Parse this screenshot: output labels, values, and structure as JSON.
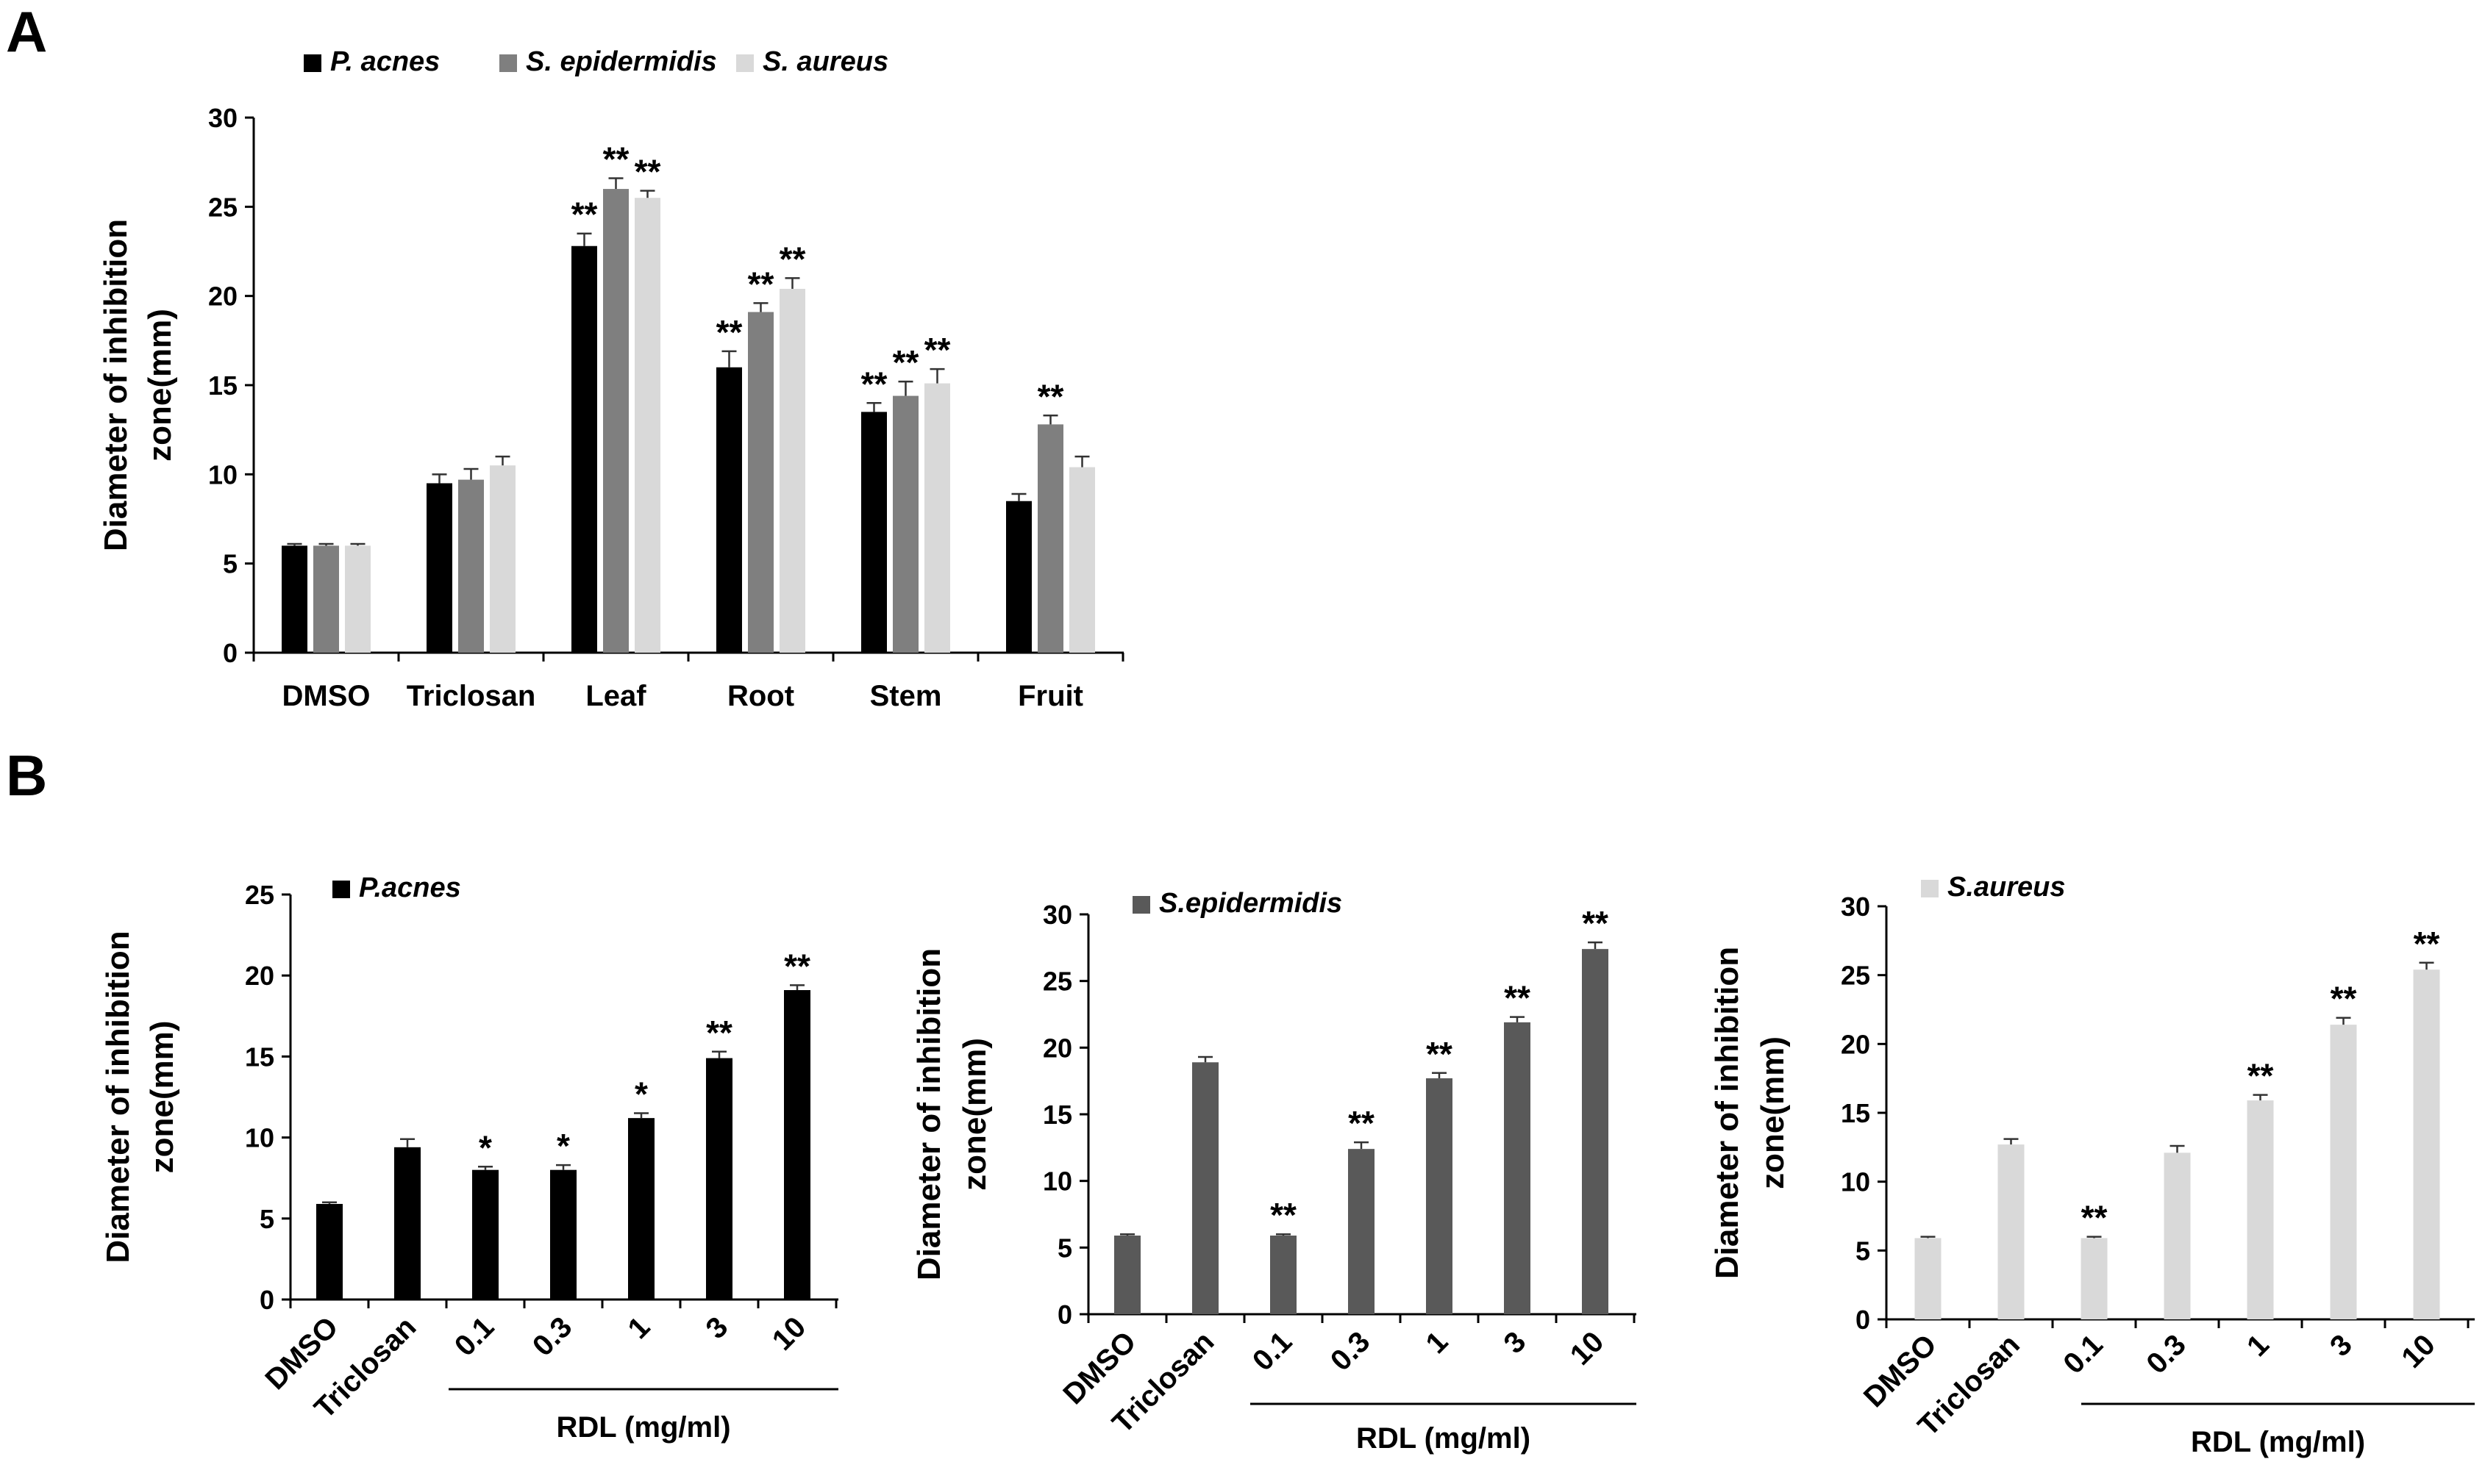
{
  "panels": {
    "a_label": "A",
    "b_label": "B"
  },
  "colors": {
    "p_acnes": "#000000",
    "s_epidermidis": "#7f7f7f",
    "s_aureus": "#d9d9d9",
    "b_s_epidermidis": "#595959"
  },
  "chart_data": [
    {
      "type": "bar",
      "panel": "A",
      "ylabel_line1": "Diameter of inhibition",
      "ylabel_line2": "zone(mm)",
      "ylim": [
        0,
        30
      ],
      "yticks": [
        0,
        5,
        10,
        15,
        20,
        25,
        30
      ],
      "legend_position": "top-left",
      "categories": [
        "DMSO",
        "Triclosan",
        "Leaf",
        "Root",
        "Stem",
        "Fruit"
      ],
      "series": [
        {
          "name": "P. acnes",
          "color": "#000000",
          "values": [
            6.0,
            9.5,
            22.8,
            16.0,
            13.5,
            8.5
          ],
          "errors": [
            0.1,
            0.5,
            0.7,
            0.9,
            0.5,
            0.4
          ],
          "stars": [
            "",
            "",
            "**",
            "**",
            "**",
            ""
          ]
        },
        {
          "name": "S. epidermidis",
          "color": "#7f7f7f",
          "values": [
            6.0,
            9.7,
            26.0,
            19.1,
            14.4,
            12.8
          ],
          "errors": [
            0.1,
            0.6,
            0.6,
            0.5,
            0.8,
            0.5
          ],
          "stars": [
            "",
            "",
            "**",
            "**",
            "**",
            "**"
          ]
        },
        {
          "name": "S. aureus",
          "color": "#d9d9d9",
          "values": [
            6.0,
            10.5,
            25.5,
            20.4,
            15.1,
            10.4
          ],
          "errors": [
            0.1,
            0.5,
            0.4,
            0.6,
            0.8,
            0.6
          ],
          "stars": [
            "",
            "",
            "**",
            "**",
            "**",
            ""
          ]
        }
      ]
    },
    {
      "type": "bar",
      "panel": "B1",
      "ylabel_line1": "Diameter of inhibition",
      "ylabel_line2": "zone(mm)",
      "ylim": [
        0,
        25
      ],
      "yticks": [
        0,
        5,
        10,
        15,
        20,
        25
      ],
      "legend_position": "top-left",
      "xgroup_label": "RDL (mg/ml)",
      "categories": [
        "DMSO",
        "Triclosan",
        "0.1",
        "0.3",
        "1",
        "3",
        "10"
      ],
      "series": [
        {
          "name": "P.acnes",
          "color": "#000000",
          "values": [
            5.9,
            9.4,
            8.0,
            8.0,
            11.2,
            14.9,
            19.1
          ],
          "errors": [
            0.1,
            0.5,
            0.2,
            0.3,
            0.3,
            0.4,
            0.3
          ],
          "stars": [
            "",
            "",
            "*",
            "*",
            "*",
            "**",
            "**"
          ]
        }
      ]
    },
    {
      "type": "bar",
      "panel": "B2",
      "ylabel_line1": "Diameter of inhibition",
      "ylabel_line2": "zone(mm)",
      "ylim": [
        0,
        30
      ],
      "yticks": [
        0,
        5,
        10,
        15,
        20,
        25,
        30
      ],
      "legend_position": "top-left",
      "xgroup_label": "RDL (mg/ml)",
      "categories": [
        "DMSO",
        "Triclosan",
        "0.1",
        "0.3",
        "1",
        "3",
        "10"
      ],
      "series": [
        {
          "name": "S.epidermidis",
          "color": "#595959",
          "values": [
            5.9,
            18.9,
            5.9,
            12.4,
            17.7,
            21.9,
            27.4
          ],
          "errors": [
            0.1,
            0.4,
            0.1,
            0.5,
            0.4,
            0.4,
            0.5
          ],
          "stars": [
            "",
            "",
            "**",
            "**",
            "**",
            "**",
            "**"
          ]
        }
      ]
    },
    {
      "type": "bar",
      "panel": "B3",
      "ylabel_line1": "Diameter of inhibition",
      "ylabel_line2": "zone(mm)",
      "ylim": [
        0,
        30
      ],
      "yticks": [
        0,
        5,
        10,
        15,
        20,
        25,
        30
      ],
      "legend_position": "top-left",
      "xgroup_label": "RDL (mg/ml)",
      "categories": [
        "DMSO",
        "Triclosan",
        "0.1",
        "0.3",
        "1",
        "3",
        "10"
      ],
      "series": [
        {
          "name": "S.aureus",
          "color": "#d9d9d9",
          "values": [
            5.9,
            12.7,
            5.9,
            12.1,
            15.9,
            21.4,
            25.4
          ],
          "errors": [
            0.1,
            0.4,
            0.1,
            0.5,
            0.4,
            0.5,
            0.5
          ],
          "stars": [
            "",
            "",
            "**",
            "",
            "**",
            "**",
            "**"
          ]
        }
      ]
    }
  ]
}
